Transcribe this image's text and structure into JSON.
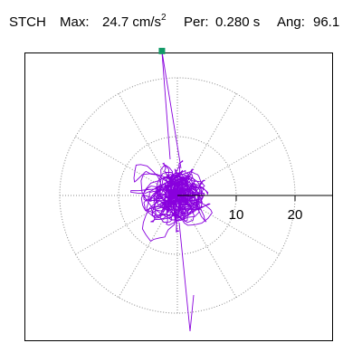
{
  "header": {
    "station": "STCH",
    "max_label": "Max:",
    "max_value": "24.7",
    "max_unit_base": "cm/s",
    "max_unit_exp": "2",
    "per_label": "Per:",
    "per_value": "0.280 s",
    "ang_label": "Ang:",
    "ang_value": "96.1"
  },
  "chart_data": {
    "type": "scatter",
    "subtype": "polar-hodogram",
    "title": "STCH",
    "max_acceleration": 24.7,
    "period_s": 0.28,
    "angle_deg": 96.1,
    "radial_ticks": [
      10,
      20
    ],
    "radial_tick_labels": [
      "10",
      "20"
    ],
    "radial_grid_rings": [
      10,
      20
    ],
    "angular_spokes_deg": [
      0,
      30,
      60,
      90,
      120,
      150,
      180,
      210,
      240,
      270,
      300,
      330
    ],
    "grid": "dotted",
    "series": [
      {
        "color": "#8800dd",
        "peak_marker": {
          "angle_deg": 96.1,
          "value": 24.7,
          "color": "#119966"
        }
      }
    ]
  }
}
